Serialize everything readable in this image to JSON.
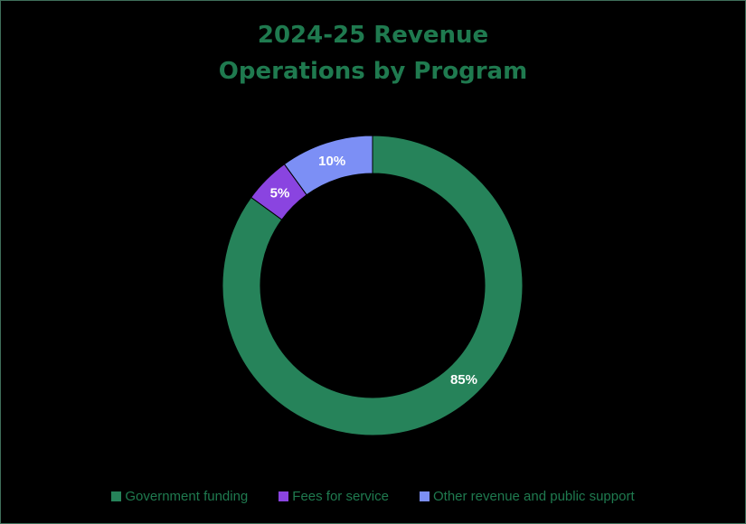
{
  "chart_data": {
    "type": "pie",
    "donut": true,
    "title_lines": [
      "2024-25 Revenue",
      "Operations by Program"
    ],
    "slices": [
      {
        "label": "Government funding",
        "value": 85,
        "display": "85%",
        "color": "#26835a"
      },
      {
        "label": "Fees for service",
        "value": 5,
        "display": "5%",
        "color": "#8a44e0"
      },
      {
        "label": "Other revenue and public support",
        "value": 10,
        "display": "10%",
        "color": "#7c8ff5"
      }
    ],
    "legend_position": "bottom",
    "start": "top, clockwise"
  }
}
